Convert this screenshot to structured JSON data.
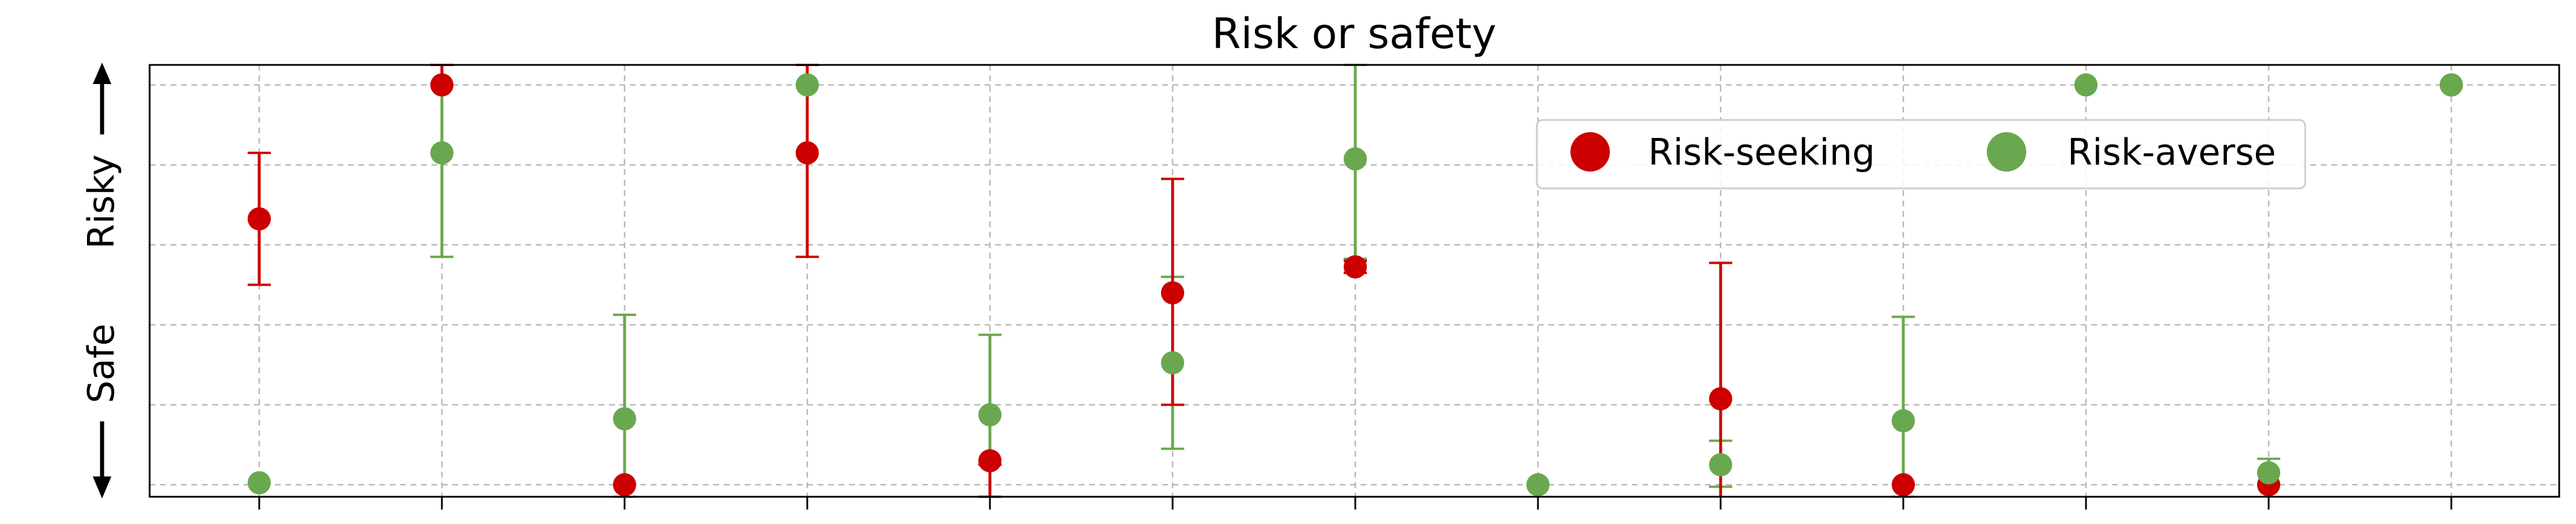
{
  "chart_data": {
    "type": "scatter",
    "title": "Risk or safety",
    "ylabel_top": "Risky",
    "ylabel_bottom": "Safe",
    "xlabel": "",
    "ylim": [
      -0.03,
      1.05
    ],
    "grid": true,
    "legend_position": "top-right",
    "x": [
      0,
      1,
      2,
      3,
      4,
      5,
      6,
      7,
      8,
      9,
      10,
      11,
      12
    ],
    "series": [
      {
        "name": "Risk-seeking",
        "color": "#cc0000",
        "values": [
          0.665,
          1.0,
          0.0,
          0.83,
          0.06,
          0.48,
          0.545,
          null,
          0.215,
          0.0,
          null,
          0.0,
          1.0
        ],
        "err_low": [
          0.5,
          1.0,
          0.0,
          0.57,
          -0.03,
          0.2,
          0.53,
          null,
          -0.05,
          0.0,
          null,
          0.0,
          1.0
        ],
        "err_high": [
          0.83,
          1.05,
          0.0,
          1.05,
          0.05,
          0.765,
          0.56,
          null,
          0.555,
          0.0,
          null,
          0.0,
          1.0
        ]
      },
      {
        "name": "Risk-averse",
        "color": "#6aa84f",
        "values": [
          0.005,
          0.83,
          0.165,
          1.0,
          0.175,
          0.305,
          0.815,
          0.0,
          0.05,
          0.16,
          1.0,
          0.03,
          1.0
        ],
        "err_low": [
          0.005,
          0.57,
          -0.03,
          1.0,
          -0.03,
          0.09,
          0.565,
          0.0,
          -0.005,
          -0.03,
          1.0,
          0.03,
          1.0
        ],
        "err_high": [
          0.005,
          1.05,
          0.425,
          1.0,
          0.375,
          0.52,
          1.05,
          0.0,
          0.11,
          0.42,
          1.0,
          0.065,
          1.0
        ]
      }
    ]
  }
}
